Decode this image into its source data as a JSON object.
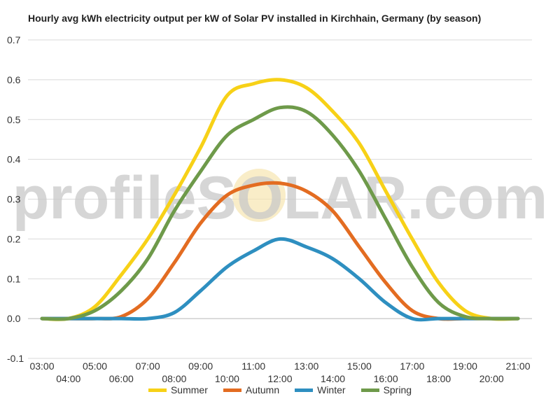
{
  "chart_data": {
    "type": "line",
    "title": "Hourly avg kWh electricity output per kW of Solar PV installed in Kirchhain, Germany (by season)",
    "xlabel": "",
    "ylabel": "",
    "ylim": [
      -0.1,
      0.7
    ],
    "yticks": [
      "-0.1",
      "0.0",
      "0.1",
      "0.2",
      "0.3",
      "0.4",
      "0.5",
      "0.6",
      "0.7"
    ],
    "x": [
      "03:00",
      "04:00",
      "05:00",
      "06:00",
      "07:00",
      "08:00",
      "09:00",
      "10:00",
      "11:00",
      "12:00",
      "13:00",
      "14:00",
      "15:00",
      "16:00",
      "17:00",
      "18:00",
      "19:00",
      "20:00",
      "21:00"
    ],
    "grid": true,
    "legend_position": "bottom",
    "watermark": "profileSOLAR.com",
    "series": [
      {
        "name": "Summer",
        "color": "#f7d117",
        "values": [
          0.0,
          0.0,
          0.03,
          0.11,
          0.2,
          0.31,
          0.43,
          0.56,
          0.59,
          0.6,
          0.58,
          0.52,
          0.44,
          0.32,
          0.2,
          0.09,
          0.02,
          0.0,
          0.0
        ]
      },
      {
        "name": "Autumn",
        "color": "#e36c21",
        "values": [
          0.0,
          0.0,
          0.0,
          0.005,
          0.05,
          0.14,
          0.24,
          0.31,
          0.335,
          0.34,
          0.32,
          0.27,
          0.18,
          0.09,
          0.02,
          0.0,
          0.0,
          0.0,
          0.0
        ]
      },
      {
        "name": "Winter",
        "color": "#2e8fc0",
        "values": [
          0.0,
          0.0,
          0.0,
          0.0,
          0.0,
          0.015,
          0.07,
          0.13,
          0.17,
          0.2,
          0.18,
          0.15,
          0.1,
          0.04,
          0.0,
          0.0,
          0.0,
          0.0,
          0.0
        ]
      },
      {
        "name": "Spring",
        "color": "#6e9a4a",
        "values": [
          0.0,
          0.0,
          0.02,
          0.07,
          0.15,
          0.27,
          0.37,
          0.46,
          0.5,
          0.53,
          0.52,
          0.46,
          0.37,
          0.25,
          0.13,
          0.04,
          0.005,
          0.0,
          0.0
        ]
      }
    ]
  }
}
